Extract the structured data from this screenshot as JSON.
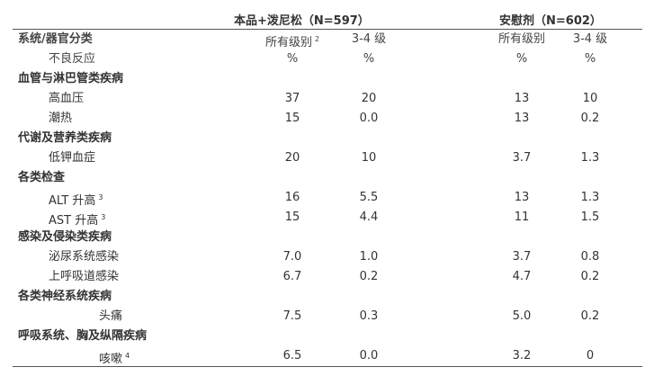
{
  "header": {
    "group_a": "本品+泼尼松（N=597）",
    "group_b": "安慰剂（N=602）"
  },
  "columns": {
    "row1": {
      "label": "系统/器官分类",
      "a_all": "所有级别",
      "a_all_fn": "2",
      "a_34": "3-4 级",
      "b_all": "所有级别",
      "b_34": "3-4 级"
    },
    "row2": {
      "label": "不良反应",
      "a_all": "%",
      "a_34": "%",
      "b_all": "%",
      "b_34": "%"
    }
  },
  "rows": [
    {
      "type": "category",
      "label": "血管与淋巴管类疾病"
    },
    {
      "type": "item",
      "label": "高血压",
      "fn": "",
      "a_all": "37",
      "a_34": "20",
      "b_all": "13",
      "b_34": "10"
    },
    {
      "type": "item",
      "label": "潮热",
      "fn": "",
      "a_all": "15",
      "a_34": "0.0",
      "b_all": "13",
      "b_34": "0.2"
    },
    {
      "type": "category",
      "label": "代谢及营养类疾病"
    },
    {
      "type": "item",
      "label": "低钾血症",
      "fn": "",
      "a_all": "20",
      "a_34": "10",
      "b_all": "3.7",
      "b_34": "1.3"
    },
    {
      "type": "category",
      "label": "各类检查"
    },
    {
      "type": "item",
      "label": "ALT 升高",
      "fn": "3",
      "a_all": "16",
      "a_34": "5.5",
      "b_all": "13",
      "b_34": "1.3"
    },
    {
      "type": "item",
      "label": "AST 升高",
      "fn": "3",
      "a_all": "15",
      "a_34": "4.4",
      "b_all": "11",
      "b_34": "1.5"
    },
    {
      "type": "category",
      "label": "感染及侵染类疾病"
    },
    {
      "type": "item",
      "label": "泌尿系统感染",
      "fn": "",
      "a_all": "7.0",
      "a_34": "1.0",
      "b_all": "3.7",
      "b_34": "0.8"
    },
    {
      "type": "item",
      "label": "上呼吸道感染",
      "fn": "",
      "a_all": "6.7",
      "a_34": "0.2",
      "b_all": "4.7",
      "b_34": "0.2"
    },
    {
      "type": "category",
      "label": "各类神经系统疾病"
    },
    {
      "type": "item-far",
      "label": "头痛",
      "fn": "",
      "a_all": "7.5",
      "a_34": "0.3",
      "b_all": "5.0",
      "b_34": "0.2"
    },
    {
      "type": "category",
      "label": "呼吸系统、胸及纵隔疾病"
    },
    {
      "type": "item-far",
      "label": "咳嗽",
      "fn": "4",
      "a_all": "6.5",
      "a_34": "0.0",
      "b_all": "3.2",
      "b_34": "0"
    }
  ]
}
